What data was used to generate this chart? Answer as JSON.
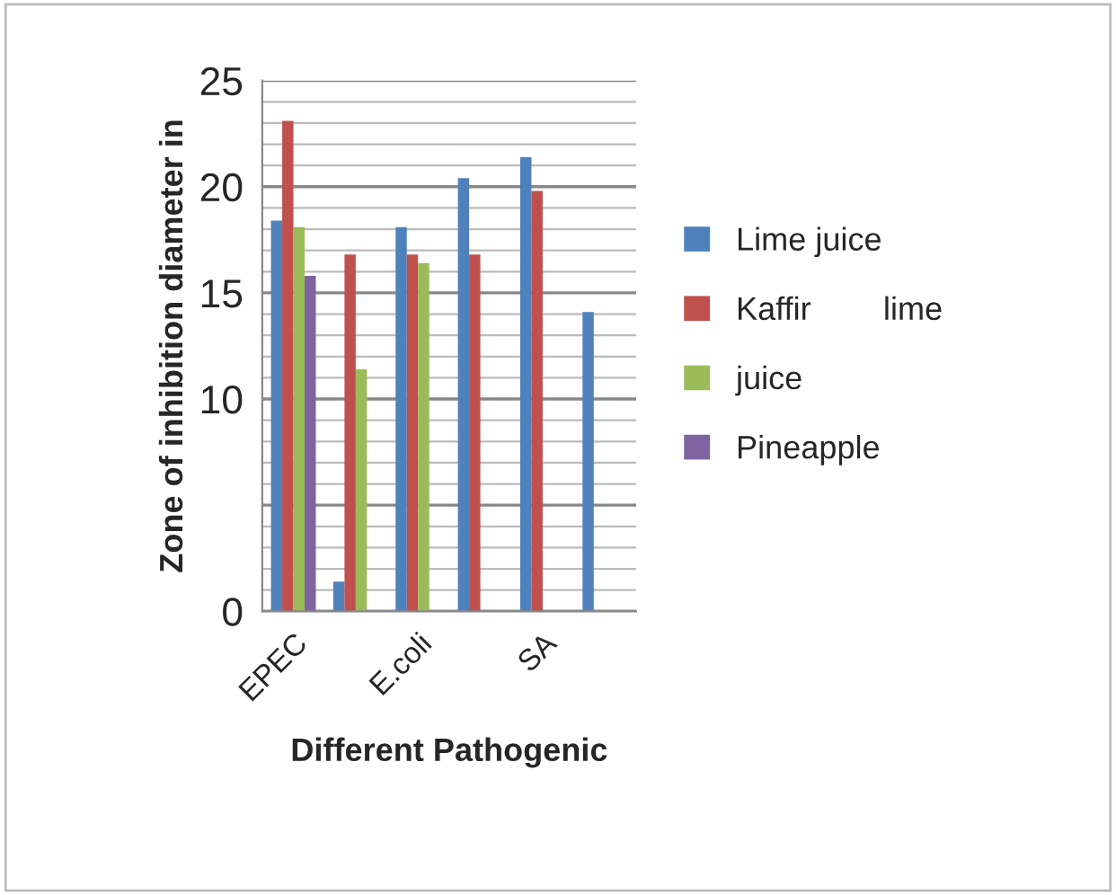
{
  "chart_data": {
    "type": "bar",
    "xlabel": "Different Pathogenic",
    "ylabel": "Zone of inhibition diameter in",
    "categories": [
      "EPEC",
      null,
      "E.coli",
      null,
      "SA",
      null
    ],
    "series": [
      {
        "name": "Lime juice",
        "color": "#4f81bd",
        "values": [
          18.4,
          1.4,
          18.1,
          20.4,
          21.4,
          14.1
        ]
      },
      {
        "name": "Kaffir        lime",
        "color": "#c0504d",
        "values": [
          23.1,
          16.8,
          16.8,
          16.8,
          19.8,
          null
        ]
      },
      {
        "name": "juice",
        "color": "#9bbb59",
        "values": [
          18.1,
          11.4,
          16.4,
          null,
          null,
          null
        ]
      },
      {
        "name": "Pineapple",
        "color": "#8064a2",
        "values": [
          15.8,
          null,
          null,
          null,
          null,
          null
        ]
      }
    ],
    "ylim": [
      0,
      25
    ],
    "yticks": [
      0,
      {
        "value": 5,
        "label": null
      },
      10,
      15,
      20,
      25
    ],
    "grid": "y",
    "legend": "right"
  }
}
